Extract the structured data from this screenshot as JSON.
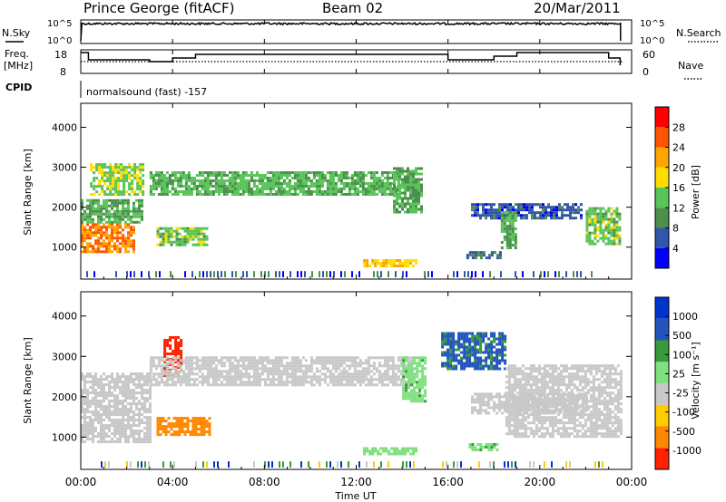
{
  "header": {
    "station": "Prince George (fitACF)",
    "beam": "Beam 02",
    "date": "20/Mar/2011"
  },
  "top_panel": {
    "left_label": "N.Sky",
    "right_label": "N.Search",
    "y_ticks": [
      "10^5",
      "10^0"
    ]
  },
  "freq_panel": {
    "left_label_1": "Freq.",
    "left_label_2": "[MHz]",
    "left_ticks": [
      "18",
      "8"
    ],
    "right_label": "Nave",
    "right_ticks": [
      "60",
      "0"
    ]
  },
  "cpid": {
    "label": "CPID",
    "value": "normalsound (fast) -157"
  },
  "power_panel": {
    "ylabel": "Slant Range [km]",
    "colorbar_label": "Power [dB]",
    "colorbar_ticks": [
      "28",
      "24",
      "20",
      "16",
      "12",
      "8",
      "4"
    ]
  },
  "velocity_panel": {
    "ylabel": "Slant Range [km]",
    "colorbar_label": "Velocity [m s⁻¹]",
    "colorbar_ticks": [
      "1000",
      "500",
      "100",
      "25",
      "-25",
      "-100",
      "-500",
      "-1000"
    ]
  },
  "xaxis": {
    "label": "Time UT",
    "ticks": [
      "00:00",
      "04:00",
      "08:00",
      "12:00",
      "16:00",
      "20:00",
      "00:00"
    ]
  },
  "colors": {
    "power_scale": [
      "#0000ff",
      "#3355aa",
      "#4c8f4c",
      "#59c459",
      "#ffdd00",
      "#ffa500",
      "#ff5500",
      "#ff0000"
    ],
    "velocity_scale": [
      "#0033cc",
      "#2255bb",
      "#3a9a3a",
      "#7fe07f",
      "#c8c8c8",
      "#ffcc00",
      "#ff8800",
      "#ff2200"
    ],
    "ground_scatter": "#c8c8c8"
  },
  "chart_data": [
    {
      "type": "line",
      "title": "",
      "series": [
        {
          "name": "N.Sky",
          "x": [
            "00:00",
            "00:20",
            "02:00",
            "04:00",
            "08:00",
            "12:00",
            "15:00",
            "17:00",
            "20:00",
            "22:00",
            "23:30",
            "23:40"
          ],
          "y_log10": [
            5,
            5,
            5,
            5,
            5,
            5,
            5,
            5,
            5,
            5,
            5,
            0
          ]
        }
      ],
      "ylim_log10": [
        0,
        5
      ]
    },
    {
      "type": "line",
      "series": [
        {
          "name": "Freq.",
          "x": [
            "00:00",
            "00:20",
            "01:00",
            "03:00",
            "04:00",
            "05:00",
            "06:00",
            "15:00",
            "16:00",
            "18:00",
            "19:00",
            "22:00",
            "23:00",
            "23:30"
          ],
          "y": [
            18,
            14,
            14,
            13,
            15,
            17,
            17,
            17,
            14,
            16,
            18,
            18,
            15,
            11
          ]
        },
        {
          "name": "Nave",
          "x": [
            "00:00",
            "23:40"
          ],
          "y": [
            30,
            30
          ]
        }
      ],
      "ylim": [
        8,
        18
      ],
      "ylim_right": [
        0,
        60
      ]
    },
    {
      "type": "heatmap",
      "ylabel": "Slant Range [km]",
      "xlabel": "Time UT",
      "ylim": [
        200,
        4600
      ],
      "xlim_hours": [
        0,
        24
      ],
      "colorbar": "Power [dB]",
      "regions": [
        {
          "t": [
            0.0,
            2.3
          ],
          "r": [
            900,
            1600
          ],
          "value": 26
        },
        {
          "t": [
            0.0,
            2.7
          ],
          "r": [
            1600,
            2200
          ],
          "value": 14
        },
        {
          "t": [
            0.4,
            2.7
          ],
          "r": [
            2300,
            3100
          ],
          "value": 17
        },
        {
          "t": [
            3.3,
            5.5
          ],
          "r": [
            1050,
            1500
          ],
          "value": 16
        },
        {
          "t": [
            3.0,
            13.8
          ],
          "r": [
            2300,
            2900
          ],
          "value": 15
        },
        {
          "t": [
            13.6,
            14.8
          ],
          "r": [
            1900,
            3000
          ],
          "value": 14
        },
        {
          "t": [
            12.3,
            14.6
          ],
          "r": [
            500,
            700
          ],
          "value": 22
        },
        {
          "t": [
            16.8,
            18.3
          ],
          "r": [
            700,
            900
          ],
          "value": 10
        },
        {
          "t": [
            17.0,
            21.8
          ],
          "r": [
            1700,
            2100
          ],
          "value": 8
        },
        {
          "t": [
            18.3,
            19.0
          ],
          "r": [
            1000,
            1900
          ],
          "value": 14
        },
        {
          "t": [
            22.0,
            23.5
          ],
          "r": [
            1100,
            2000
          ],
          "value": 16
        }
      ]
    },
    {
      "type": "heatmap",
      "ylabel": "Slant Range [km]",
      "xlabel": "Time UT",
      "ylim": [
        200,
        4600
      ],
      "xlim_hours": [
        0,
        24
      ],
      "colorbar": "Velocity [m s⁻¹]",
      "regions": [
        {
          "t": [
            0.0,
            3.0
          ],
          "r": [
            900,
            2600
          ],
          "value": 0
        },
        {
          "t": [
            3.3,
            5.6
          ],
          "r": [
            1050,
            1500
          ],
          "value": -300
        },
        {
          "t": [
            3.6,
            4.4
          ],
          "r": [
            2500,
            3500
          ],
          "value": -800
        },
        {
          "t": [
            3.0,
            14.5
          ],
          "r": [
            2300,
            3000
          ],
          "value": 0
        },
        {
          "t": [
            14.0,
            15.0
          ],
          "r": [
            1900,
            3000
          ],
          "value": 80
        },
        {
          "t": [
            12.3,
            14.6
          ],
          "r": [
            550,
            750
          ],
          "value": 60
        },
        {
          "t": [
            16.9,
            18.2
          ],
          "r": [
            650,
            850
          ],
          "value": 80
        },
        {
          "t": [
            17.0,
            22.0
          ],
          "r": [
            1600,
            2100
          ],
          "value": 0
        },
        {
          "t": [
            15.7,
            18.5
          ],
          "r": [
            2700,
            3600
          ],
          "value": 600
        },
        {
          "t": [
            18.5,
            23.5
          ],
          "r": [
            1000,
            2800
          ],
          "value": 0
        }
      ]
    }
  ]
}
